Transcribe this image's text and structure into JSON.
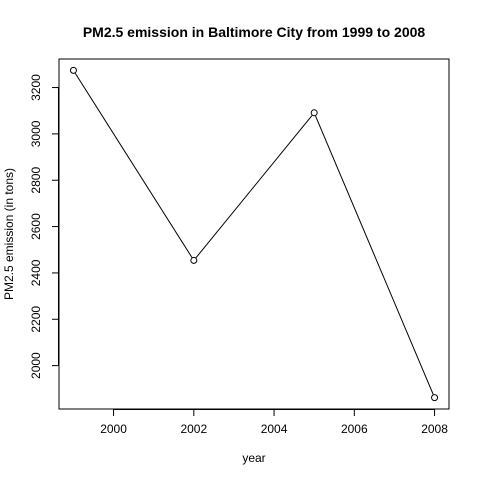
{
  "chart_data": {
    "type": "line",
    "title": "PM2.5 emission in Baltimore City from 1999 to 2008",
    "xlabel": "year",
    "ylabel": "PM2.5 emission (in tons)",
    "x": [
      1999,
      2002,
      2005,
      2008
    ],
    "values": [
      3274,
      2454,
      3091,
      1862
    ],
    "x_ticks": [
      2000,
      2002,
      2004,
      2006,
      2008
    ],
    "y_ticks": [
      2000,
      2200,
      2400,
      2600,
      2800,
      3000,
      3200
    ],
    "xlim": [
      1998.64,
      2008.36
    ],
    "ylim": [
      1812.8,
      3323.2
    ],
    "grid": false,
    "markers": "open-circle",
    "line_color": "#000000"
  }
}
